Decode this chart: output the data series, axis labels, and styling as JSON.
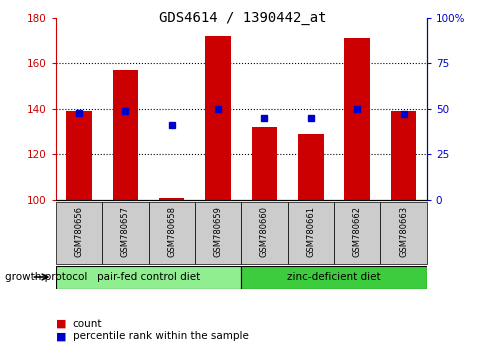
{
  "title": "GDS4614 / 1390442_at",
  "samples": [
    "GSM780656",
    "GSM780657",
    "GSM780658",
    "GSM780659",
    "GSM780660",
    "GSM780661",
    "GSM780662",
    "GSM780663"
  ],
  "counts": [
    139,
    157,
    101,
    172,
    132,
    129,
    171,
    139
  ],
  "percentile_ranks": [
    48,
    49,
    41,
    50,
    45,
    45,
    50,
    47
  ],
  "ylim_left": [
    100,
    180
  ],
  "ylim_right": [
    0,
    100
  ],
  "yticks_left": [
    100,
    120,
    140,
    160,
    180
  ],
  "yticks_right": [
    0,
    25,
    50,
    75,
    100
  ],
  "ytick_labels_right": [
    "0",
    "25",
    "50",
    "75",
    "100%"
  ],
  "groups": [
    {
      "label": "pair-fed control diet",
      "start": 0,
      "end": 3,
      "color": "#90EE90"
    },
    {
      "label": "zinc-deficient diet",
      "start": 4,
      "end": 7,
      "color": "#3DCC3D"
    }
  ],
  "group_label": "growth protocol",
  "bar_color": "#CC0000",
  "dot_color": "#0000CC",
  "bar_width": 0.55,
  "tick_label_color_left": "#CC0000",
  "tick_label_color_right": "#0000CC",
  "legend_count_label": "count",
  "legend_pct_label": "percentile rank within the sample",
  "sample_bg_color": "#cccccc",
  "grid_color": "black"
}
